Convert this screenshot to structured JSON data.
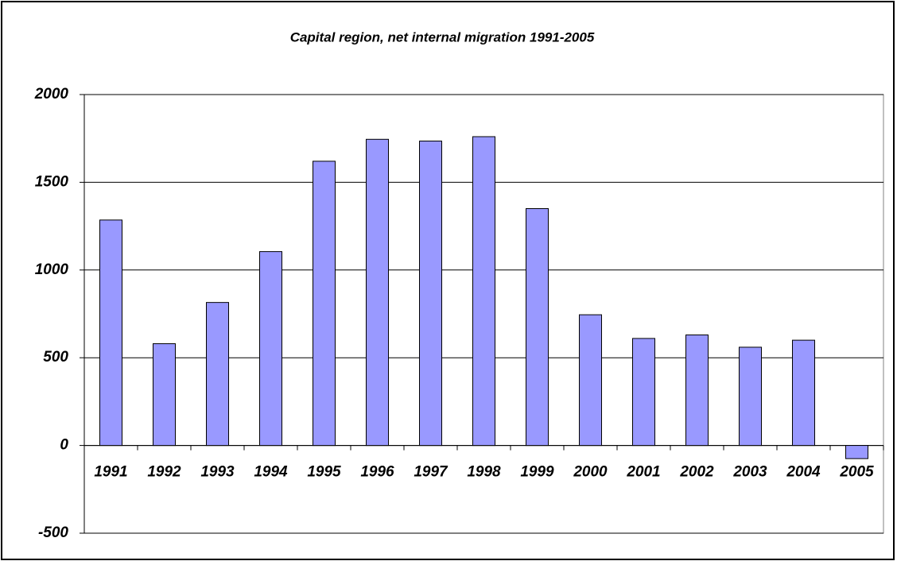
{
  "chart_data": {
    "type": "bar",
    "title": "Capital region, net internal migration 1991-2005",
    "categories": [
      "1991",
      "1992",
      "1993",
      "1994",
      "1995",
      "1996",
      "1997",
      "1998",
      "1999",
      "2000",
      "2001",
      "2002",
      "2003",
      "2004",
      "2005"
    ],
    "values": [
      1285,
      580,
      815,
      1105,
      1620,
      1745,
      1735,
      1760,
      1350,
      745,
      610,
      630,
      560,
      600,
      -75
    ],
    "color": "#9999ff",
    "ylim": [
      -500,
      2000
    ],
    "yticks": [
      -500,
      0,
      500,
      1000,
      1500,
      2000
    ],
    "grid": true
  }
}
